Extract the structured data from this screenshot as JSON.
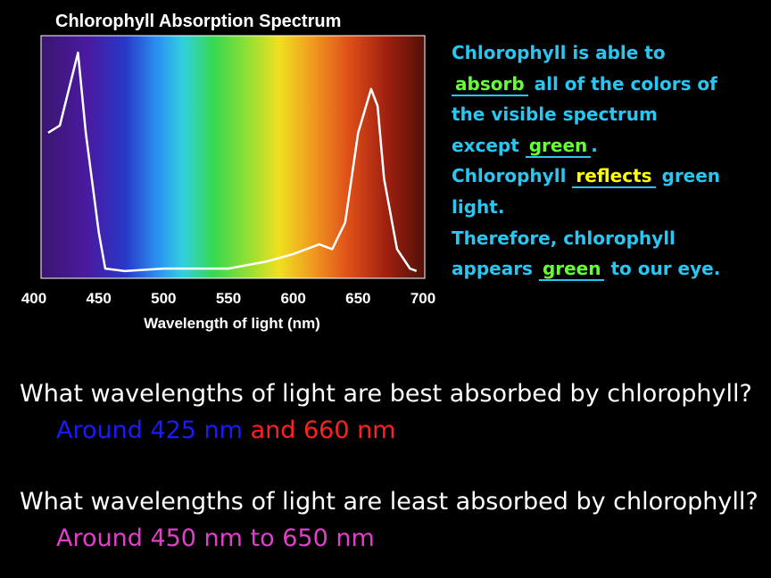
{
  "chart_data": {
    "type": "line",
    "title": "Chlorophyll Absorption Spectrum",
    "x_label": "Wavelength of light (nm)",
    "xlim": [
      400,
      700
    ],
    "xticks": [
      400,
      450,
      500,
      550,
      600,
      650,
      700
    ],
    "ylim": [
      0,
      1
    ],
    "x": [
      411,
      420,
      434,
      440,
      450,
      455,
      470,
      500,
      550,
      580,
      600,
      620,
      630,
      640,
      650,
      660,
      665,
      670,
      680,
      690,
      695
    ],
    "series": [
      {
        "color": "#ffffff",
        "values": [
          0.6,
          0.63,
          0.93,
          0.6,
          0.19,
          0.04,
          0.03,
          0.04,
          0.04,
          0.07,
          0.1,
          0.14,
          0.12,
          0.23,
          0.6,
          0.78,
          0.71,
          0.41,
          0.12,
          0.04,
          0.03
        ]
      }
    ]
  },
  "notes": {
    "l1": "Chlorophyll is able to",
    "a1": "absorb",
    "l2": "all of the colors of",
    "l3": "the visible spectrum",
    "l4a": "except",
    "a2": "green",
    "l4b": ".",
    "l5a": "Chlorophyll",
    "a3": "reflects",
    "l5b": "green",
    "l6": "light.",
    "l7": "Therefore, chlorophyll",
    "l8a": "appears",
    "a4": "green",
    "l8b": "to our eye."
  },
  "questions": [
    {
      "question": "What wavelengths of light are best absorbed by chlorophyll?",
      "answer": [
        "Around 425 nm",
        "and 660 nm"
      ]
    },
    {
      "question": "What wavelengths of light are least absorbed by chlorophyll?",
      "answer": [
        "Around 450 nm to 650 nm"
      ]
    }
  ]
}
